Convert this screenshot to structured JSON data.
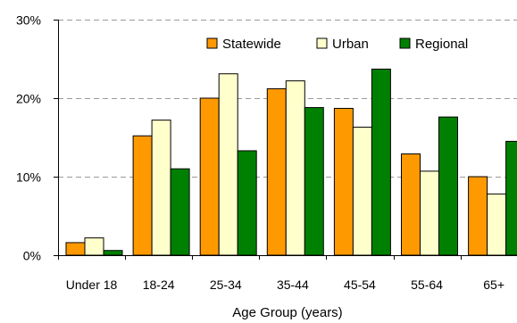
{
  "chart_data": {
    "type": "bar",
    "title": "",
    "xlabel": "Age Group (years)",
    "ylabel": "",
    "categories": [
      "Under 18",
      "18-24",
      "25-34",
      "35-44",
      "45-54",
      "55-64",
      "65+"
    ],
    "series": [
      {
        "name": "Statewide",
        "color": "#ff9900",
        "values": [
          1.6,
          15.2,
          20.0,
          21.2,
          18.7,
          12.9,
          10.0
        ]
      },
      {
        "name": "Urban",
        "color": "#ffffcc",
        "values": [
          2.2,
          17.2,
          23.1,
          22.2,
          16.3,
          10.7,
          7.8
        ]
      },
      {
        "name": "Regional",
        "color": "#008000",
        "values": [
          0.6,
          11.0,
          13.3,
          18.8,
          23.7,
          17.6,
          14.5
        ]
      }
    ],
    "ylim": [
      0,
      30
    ],
    "yticks": [
      0,
      10,
      20,
      30
    ],
    "ytick_labels": [
      "0%",
      "10%",
      "20%",
      "30%"
    ],
    "grid": true,
    "legend_position": "top-right"
  }
}
